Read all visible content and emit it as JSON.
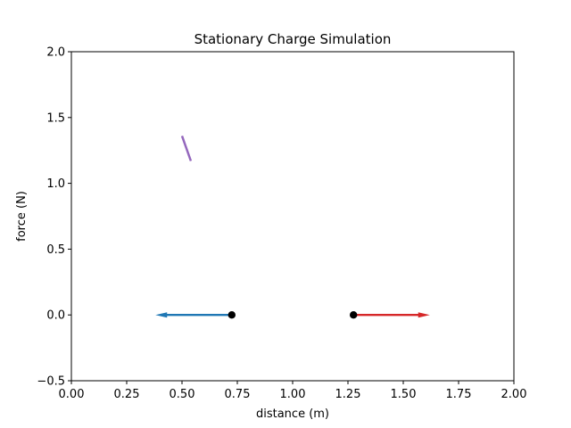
{
  "chart_data": {
    "type": "scatter",
    "title": "Stationary Charge Simulation",
    "xlabel": "distance (m)",
    "ylabel": "force (N)",
    "xlim": [
      0.0,
      2.0
    ],
    "ylim": [
      -0.5,
      2.0
    ],
    "x_ticks": [
      "0.00",
      "0.25",
      "0.50",
      "0.75",
      "1.00",
      "1.25",
      "1.50",
      "1.75",
      "2.00"
    ],
    "y_ticks": [
      "−0.5",
      "0.0",
      "0.5",
      "1.0",
      "1.5",
      "2.0"
    ],
    "grid": false,
    "charges": [
      {
        "x": 0.725,
        "y": 0.0,
        "color": "#000000"
      },
      {
        "x": 1.275,
        "y": 0.0,
        "color": "#000000"
      }
    ],
    "force_arrows": [
      {
        "x": 0.725,
        "y": 0.0,
        "dx": -0.345,
        "dy": 0.0,
        "color": "#1f77b4"
      },
      {
        "x": 1.275,
        "y": 0.0,
        "dx": 0.345,
        "dy": 0.0,
        "color": "#d62728"
      }
    ],
    "segments": [
      {
        "x": [
          0.5,
          0.54
        ],
        "y": [
          1.36,
          1.17
        ],
        "color": "#9467bd"
      }
    ]
  }
}
